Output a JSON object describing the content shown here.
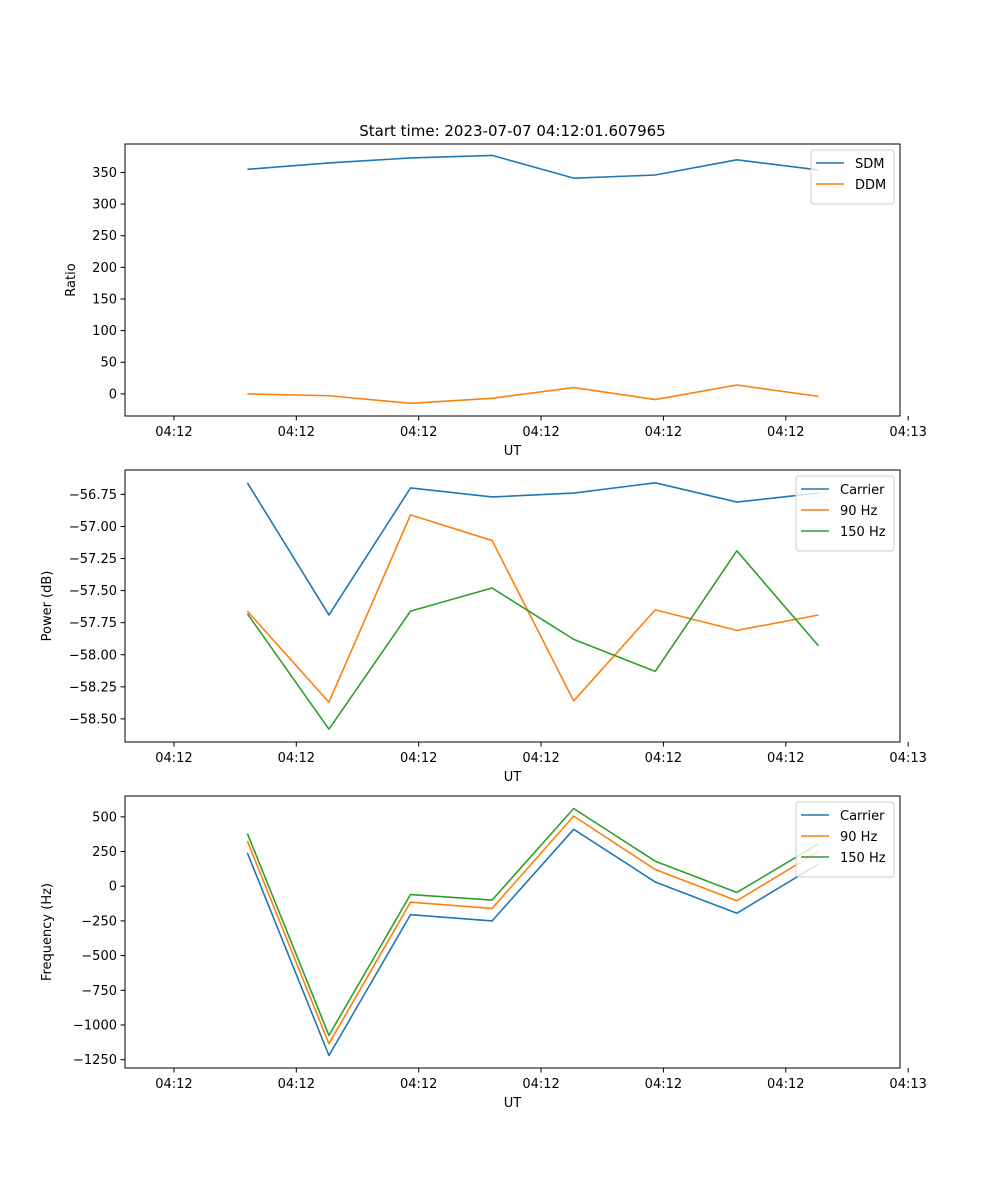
{
  "figure": {
    "title": "Start time: 2023-07-07 04:12:01.607965"
  },
  "chart_data": [
    {
      "type": "line",
      "title": "Start time: 2023-07-07 04:12:01.607965",
      "xlabel": "UT",
      "ylabel": "Ratio",
      "xlim": [
        0,
        9.5
      ],
      "ylim": [
        -35,
        395
      ],
      "xticks": [
        0.6,
        2.1,
        3.6,
        5.1,
        6.6,
        8.1,
        9.6
      ],
      "xtick_labels": [
        "04:12",
        "04:12",
        "04:12",
        "04:12",
        "04:12",
        "04:12",
        "04:13"
      ],
      "yticks": [
        0,
        50,
        100,
        150,
        200,
        250,
        300,
        350
      ],
      "ytick_labels": [
        "0",
        "50",
        "100",
        "150",
        "200",
        "250",
        "300",
        "350"
      ],
      "x": [
        1.5,
        2.5,
        3.5,
        4.5,
        5.5,
        6.5,
        7.5,
        8.5
      ],
      "legend_position": "top-right",
      "series": [
        {
          "name": "SDM",
          "color": "#1f77b4",
          "values": [
            355,
            365,
            373,
            377,
            341,
            346,
            370,
            354
          ]
        },
        {
          "name": "DDM",
          "color": "#ff7f0e",
          "values": [
            0,
            -3,
            -15,
            -7,
            10,
            -9,
            14,
            -4
          ]
        }
      ]
    },
    {
      "type": "line",
      "title": "",
      "xlabel": "UT",
      "ylabel": "Power (dB)",
      "xlim": [
        0,
        9.5
      ],
      "ylim": [
        -58.68,
        -56.56
      ],
      "xticks": [
        0.6,
        2.1,
        3.6,
        5.1,
        6.6,
        8.1,
        9.6
      ],
      "xtick_labels": [
        "04:12",
        "04:12",
        "04:12",
        "04:12",
        "04:12",
        "04:12",
        "04:13"
      ],
      "yticks": [
        -58.5,
        -58.25,
        -58.0,
        -57.75,
        -57.5,
        -57.25,
        -57.0,
        -56.75
      ],
      "ytick_labels": [
        "−58.50",
        "−58.25",
        "−58.00",
        "−57.75",
        "−57.50",
        "−57.25",
        "−57.00",
        "−56.75"
      ],
      "x": [
        1.5,
        2.5,
        3.5,
        4.5,
        5.5,
        6.5,
        7.5,
        8.5
      ],
      "legend_position": "top-right",
      "series": [
        {
          "name": "Carrier",
          "color": "#1f77b4",
          "values": [
            -56.66,
            -57.69,
            -56.7,
            -56.77,
            -56.74,
            -56.66,
            -56.81,
            -56.74
          ]
        },
        {
          "name": "90 Hz",
          "color": "#ff7f0e",
          "values": [
            -57.66,
            -58.37,
            -56.91,
            -57.11,
            -58.36,
            -57.65,
            -57.81,
            -57.69
          ]
        },
        {
          "name": "150 Hz",
          "color": "#2ca02c",
          "values": [
            -57.68,
            -58.58,
            -57.66,
            -57.48,
            -57.88,
            -58.13,
            -57.19,
            -57.93
          ]
        }
      ]
    },
    {
      "type": "line",
      "title": "",
      "xlabel": "UT",
      "ylabel": "Frequency (Hz)",
      "xlim": [
        0,
        9.5
      ],
      "ylim": [
        -1310,
        650
      ],
      "xticks": [
        0.6,
        2.1,
        3.6,
        5.1,
        6.6,
        8.1,
        9.6
      ],
      "xtick_labels": [
        "04:12",
        "04:12",
        "04:12",
        "04:12",
        "04:12",
        "04:12",
        "04:13"
      ],
      "yticks": [
        -1250,
        -1000,
        -750,
        -500,
        -250,
        0,
        250,
        500
      ],
      "ytick_labels": [
        "−1250",
        "−1000",
        "−750",
        "−500",
        "−250",
        "0",
        "250",
        "500"
      ],
      "x": [
        1.5,
        2.5,
        3.5,
        4.5,
        5.5,
        6.5,
        7.5,
        8.5
      ],
      "legend_position": "top-right",
      "series": [
        {
          "name": "Carrier",
          "color": "#1f77b4",
          "values": [
            240,
            -1220,
            -205,
            -250,
            410,
            30,
            -195,
            160
          ]
        },
        {
          "name": "90 Hz",
          "color": "#ff7f0e",
          "values": [
            325,
            -1135,
            -115,
            -160,
            505,
            120,
            -105,
            250
          ]
        },
        {
          "name": "150 Hz",
          "color": "#2ca02c",
          "values": [
            380,
            -1075,
            -60,
            -100,
            560,
            180,
            -45,
            305
          ]
        }
      ]
    }
  ]
}
